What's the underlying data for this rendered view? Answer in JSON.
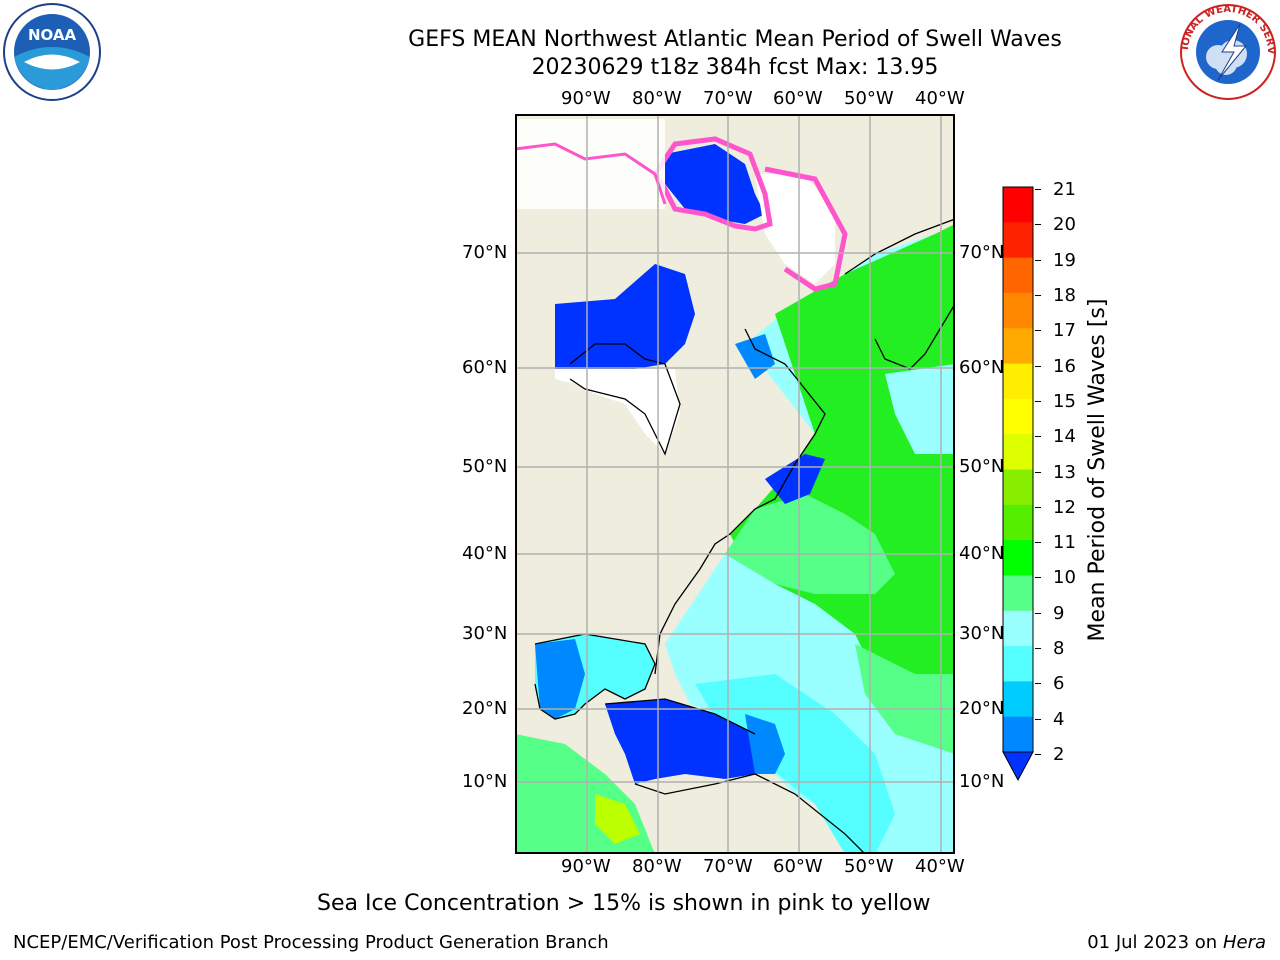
{
  "header": {
    "title_line1": "GEFS MEAN Northwest Atlantic Mean Period of Swell Waves",
    "title_line2": "20230629 t18z 384h fcst   Max: 13.95"
  },
  "logos": {
    "left": {
      "name": "noaa-logo",
      "text": "NOAA"
    },
    "right": {
      "name": "nws-logo",
      "text": "NATIONAL WEATHER SERVICE"
    }
  },
  "map": {
    "lon_labels": [
      "90°W",
      "80°W",
      "70°W",
      "60°W",
      "50°W",
      "40°W"
    ],
    "lat_labels": [
      "70°N",
      "60°N",
      "50°N",
      "40°N",
      "30°N",
      "20°N",
      "10°N"
    ],
    "colors": {
      "land": "#efedde",
      "ice": "#ffffff",
      "grid": "#b0b0b0"
    }
  },
  "colorbar": {
    "label": "Mean Period of Swell Waves [s]",
    "ticks": [
      "2",
      "4",
      "6",
      "8",
      "9",
      "10",
      "11",
      "12",
      "13",
      "14",
      "15",
      "16",
      "17",
      "18",
      "19",
      "20",
      "21"
    ],
    "colors": [
      "#0033ff",
      "#0088ff",
      "#00ccff",
      "#00ffff",
      "#55ffff",
      "#99ffff",
      "#55ff88",
      "#22ee22",
      "#00ff00",
      "#55ee00",
      "#88ee00",
      "#bbff00",
      "#ddff00",
      "#ffff00",
      "#ffee00",
      "#ffcc00",
      "#ffaa00",
      "#ff8800",
      "#ff6600",
      "#ff4400",
      "#ff2200",
      "#ff0000"
    ]
  },
  "note": "Sea Ice Concentration > 15% is shown in pink to yellow",
  "footer": {
    "left": "NCEP/EMC/Verification Post Processing Product Generation Branch",
    "right_date": "01 Jul 2023 on ",
    "right_machine": "Hera"
  }
}
